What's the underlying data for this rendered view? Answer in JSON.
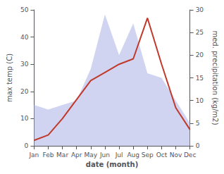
{
  "chart_data": {
    "type": "line",
    "categories": [
      "Jan",
      "Feb",
      "Mar",
      "Apr",
      "May",
      "Jun",
      "Jul",
      "Aug",
      "Sep",
      "Oct",
      "Nov",
      "Dec"
    ],
    "series": [
      {
        "type": "area",
        "axis": "y2",
        "color": "#b0b8e8",
        "values": [
          9,
          8,
          9,
          10,
          17,
          29,
          20,
          27,
          16,
          15,
          10,
          5
        ]
      },
      {
        "type": "line",
        "color": "#c0392b",
        "values": [
          2,
          4,
          10,
          17,
          24,
          27,
          30,
          32,
          47,
          30,
          14,
          6
        ]
      }
    ],
    "xlabel": "date (month)",
    "ylabel": "max temp (C)",
    "y2label": "med. precipitation (kg/m2)",
    "ylim": [
      0,
      50
    ],
    "yticks": [
      0,
      10,
      20,
      30,
      40,
      50
    ],
    "y2lim": [
      0,
      30
    ],
    "y2ticks": [
      0,
      5,
      10,
      15,
      20,
      25,
      30
    ],
    "grid": false
  }
}
